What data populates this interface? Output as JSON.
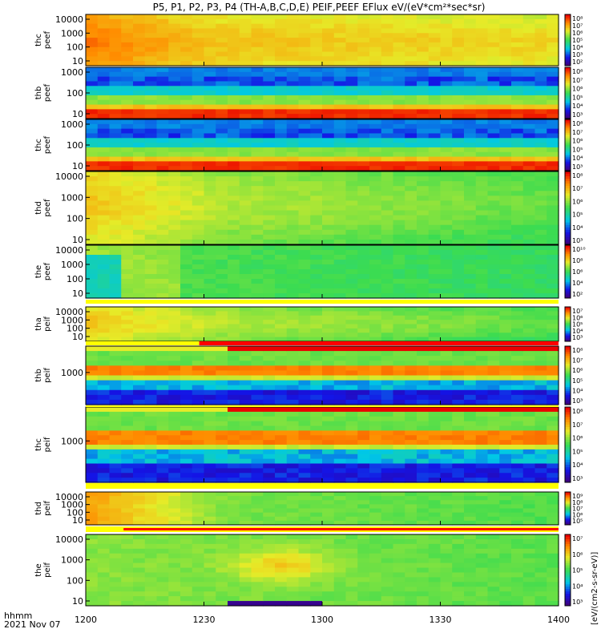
{
  "title": "P5, P1, P2, P3, P4 (TH-A,B,C,D,E) PEIF,PEEF EFlux eV/(eV*cm²*sec*sr)",
  "x_axis": {
    "label_line1": "hhmm",
    "label_line2": "2021 Nov 07",
    "tick_labels": [
      "1200",
      "1230",
      "1300",
      "1330",
      "1400"
    ]
  },
  "colorbar_unit": "[eV/(cm2-s-sr-eV)]",
  "panels": [
    {
      "label": "thc\npeef",
      "yticks": [
        "10000",
        "1000",
        "100",
        "10"
      ],
      "cb_ticks": [
        "10⁸",
        "10⁷",
        "10⁶",
        "10⁵",
        "10⁴",
        "10³",
        "10²"
      ],
      "palette": "warm"
    },
    {
      "label": "thb\npeef",
      "yticks": [
        "1000",
        "100",
        "10"
      ],
      "cb_ticks": [
        "10⁸",
        "10⁷",
        "10⁶",
        "10⁵",
        "10⁴",
        "10³"
      ],
      "palette": "banded"
    },
    {
      "label": "thc\npeef",
      "yticks": [
        "1000",
        "100",
        "10"
      ],
      "cb_ticks": [
        "10⁸",
        "10⁷",
        "10⁶",
        "10⁵",
        "10⁴",
        "10³"
      ],
      "palette": "banded"
    },
    {
      "label": "thd\npeef",
      "yticks": [
        "10000",
        "1000",
        "100",
        "10"
      ],
      "cb_ticks": [
        "10⁸",
        "10⁷",
        "10⁶",
        "10⁵",
        "10⁴",
        "10³"
      ],
      "palette": "mid"
    },
    {
      "label": "the\npeef",
      "yticks": [
        "10000",
        "1000",
        "100",
        "10"
      ],
      "cb_ticks": [
        "10¹⁰",
        "10⁸",
        "10⁶",
        "10⁴",
        "10²"
      ],
      "palette": "green"
    },
    {
      "label": "tha\npeif",
      "yticks": [
        "10000",
        "1000",
        "100",
        "10"
      ],
      "cb_ticks": [
        "10⁷",
        "10⁶",
        "10⁵",
        "10⁴",
        "10³"
      ],
      "palette": "mid"
    },
    {
      "label": "thb\npeif",
      "yticks": [
        "1000"
      ],
      "cb_ticks": [
        "10⁸",
        "10⁷",
        "10⁶",
        "10⁵",
        "10⁴",
        "10³"
      ],
      "palette": "ionband"
    },
    {
      "label": "thc\npeif",
      "yticks": [
        "1000"
      ],
      "cb_ticks": [
        "10⁸",
        "10⁷",
        "10⁶",
        "10⁵",
        "10⁴",
        "10³"
      ],
      "palette": "ionband"
    },
    {
      "label": "thd\npeif",
      "yticks": [
        "10000",
        "1000",
        "100",
        "10"
      ],
      "cb_ticks": [
        "10⁹",
        "10⁸",
        "10⁷",
        "10⁶",
        "10⁵"
      ],
      "palette": "warm2"
    },
    {
      "label": "the\npeif",
      "yticks": [
        "10000",
        "1000",
        "100",
        "10"
      ],
      "cb_ticks": [
        "10⁷",
        "10⁶",
        "10⁵",
        "10⁴",
        "10³"
      ],
      "palette": "mid2"
    }
  ],
  "chart_data": {
    "type": "heatmap",
    "title": "P5, P1, P2, P3, P4 (TH-A,B,C,D,E) PEIF,PEEF EFlux eV/(eV*cm²*sec*sr)",
    "xlabel": "hhmm",
    "x_ticks": [
      "1200",
      "1230",
      "1300",
      "1330",
      "1400"
    ],
    "x_range": [
      "1200",
      "1400"
    ],
    "date": "2021 Nov 07",
    "y_scale": "log",
    "color_scale": "log",
    "colormap": "rainbow (purple-blue-cyan-green-yellow-red)",
    "series": [
      {
        "name": "thc peef",
        "y_range": [
          5,
          30000
        ]
      },
      {
        "name": "thb peef",
        "y_range": [
          5,
          3000
        ]
      },
      {
        "name": "thc peef",
        "y_range": [
          5,
          3000
        ]
      },
      {
        "name": "thd peef",
        "y_range": [
          5,
          30000
        ]
      },
      {
        "name": "the peef",
        "y_range": [
          5,
          30000
        ]
      },
      {
        "name": "tha peif",
        "y_range": [
          5,
          30000
        ]
      },
      {
        "name": "thb peif",
        "y_range": [
          100,
          10000
        ]
      },
      {
        "name": "thc peif",
        "y_range": [
          100,
          10000
        ]
      },
      {
        "name": "thd peif",
        "y_range": [
          5,
          30000
        ]
      },
      {
        "name": "the peif",
        "y_range": [
          5,
          30000
        ]
      }
    ]
  }
}
